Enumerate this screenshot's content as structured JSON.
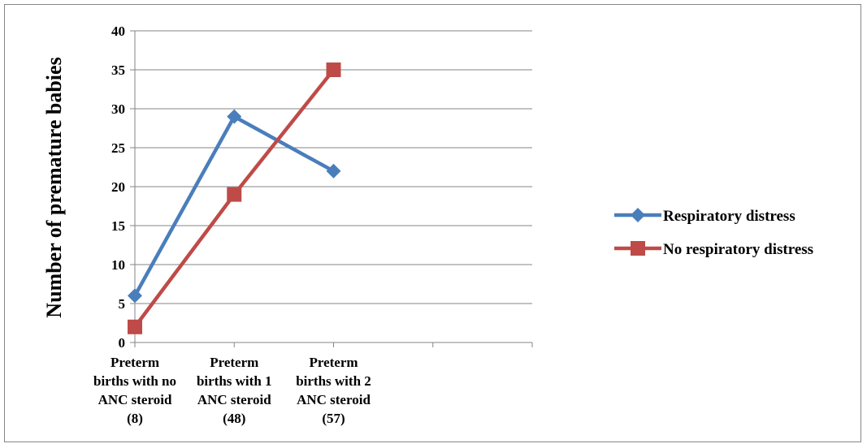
{
  "chart_data": {
    "type": "line",
    "title": "",
    "xlabel": "",
    "ylabel": "Number of premature babies",
    "ylim": [
      0,
      40
    ],
    "yticks": [
      0,
      5,
      10,
      15,
      20,
      25,
      30,
      35,
      40
    ],
    "grid": true,
    "legend_position": "right",
    "categories": [
      [
        "Preterm",
        "births with no",
        "ANC steroid",
        "(8)"
      ],
      [
        "Preterm",
        "births with 1",
        "ANC steroid",
        "(48)"
      ],
      [
        "Preterm",
        "births with 2",
        "ANC steroid",
        "(57)"
      ]
    ],
    "category_slots": 4,
    "series": [
      {
        "name": "Respiratory distress",
        "values": [
          6,
          29,
          22
        ],
        "color": "#4a7ebb",
        "marker": "diamond"
      },
      {
        "name": "No respiratory distress",
        "values": [
          2,
          19,
          35
        ],
        "color": "#be4b48",
        "marker": "square"
      }
    ]
  }
}
